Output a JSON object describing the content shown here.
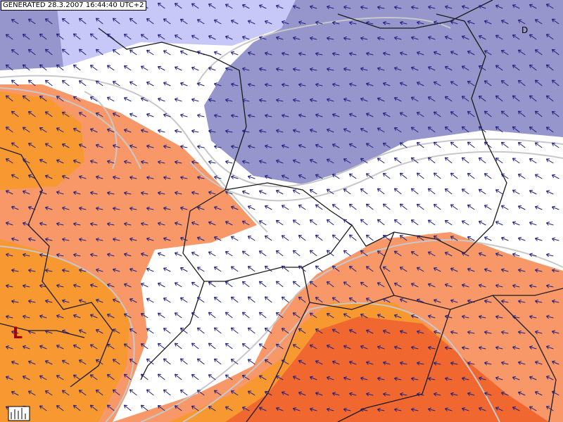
{
  "header": {
    "generated": "GENERATED 28.3.2007 16:44:40 UTC+2"
  },
  "labels": {
    "low": "L",
    "region": "D"
  }
}
